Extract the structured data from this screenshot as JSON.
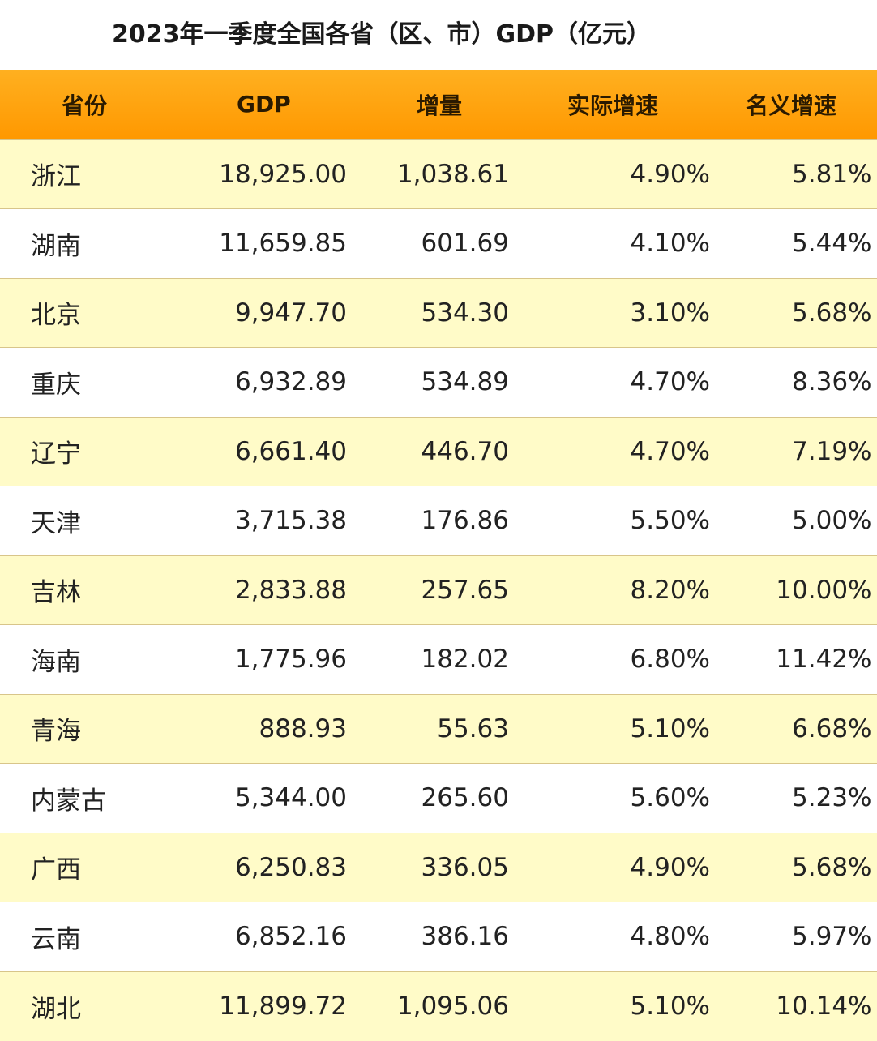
{
  "title": "2023年一季度全国各省（区、市）GDP（亿元）",
  "colors": {
    "header_background": "#ff9800",
    "row_yellow": "#fffbc8",
    "row_white": "#ffffff"
  },
  "table": {
    "headers": [
      "省份",
      "GDP",
      "增量",
      "实际增速",
      "名义增速"
    ],
    "rows": [
      [
        "浙江",
        "18,925.00",
        "1,038.61",
        "4.90%",
        "5.81%"
      ],
      [
        "湖南",
        "11,659.85",
        "601.69",
        "4.10%",
        "5.44%"
      ],
      [
        "北京",
        "9,947.70",
        "534.30",
        "3.10%",
        "5.68%"
      ],
      [
        "重庆",
        "6,932.89",
        "534.89",
        "4.70%",
        "8.36%"
      ],
      [
        "辽宁",
        "6,661.40",
        "446.70",
        "4.70%",
        "7.19%"
      ],
      [
        "天津",
        "3,715.38",
        "176.86",
        "5.50%",
        "5.00%"
      ],
      [
        "吉林",
        "2,833.88",
        "257.65",
        "8.20%",
        "10.00%"
      ],
      [
        "海南",
        "1,775.96",
        "182.02",
        "6.80%",
        "11.42%"
      ],
      [
        "青海",
        "888.93",
        "55.63",
        "5.10%",
        "6.68%"
      ],
      [
        "内蒙古",
        "5,344.00",
        "265.60",
        "5.60%",
        "5.23%"
      ],
      [
        "广西",
        "6,250.83",
        "336.05",
        "4.90%",
        "5.68%"
      ],
      [
        "云南",
        "6,852.16",
        "386.16",
        "4.80%",
        "5.97%"
      ],
      [
        "湖北",
        "11,899.72",
        "1,095.06",
        "5.10%",
        "10.14%"
      ]
    ]
  }
}
